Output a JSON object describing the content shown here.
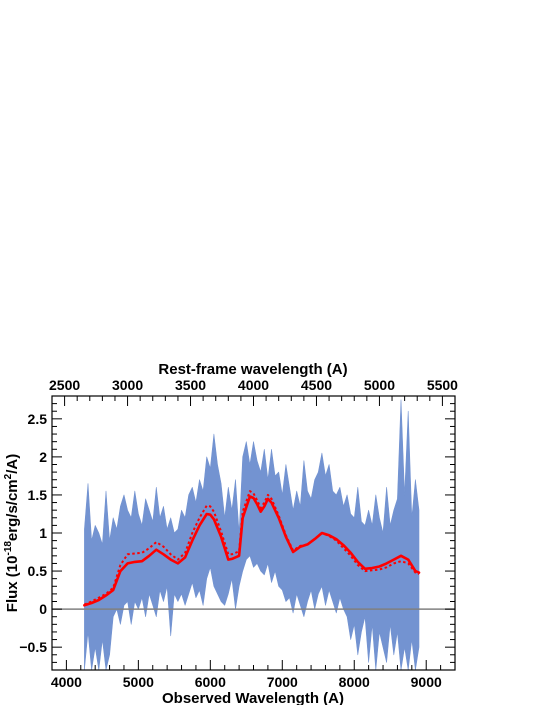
{
  "chart_data": {
    "type": "line",
    "xlabel": "Observed Wavelength (A)",
    "x2label": "Rest-frame wavelength (A)",
    "ylabel_main": "Flux (10",
    "ylabel_exp": "-18",
    "ylabel_mid": "erg/s/cm",
    "ylabel_exp2": "2",
    "ylabel_end": "/A)",
    "xlim": [
      3800,
      9400
    ],
    "ylim": [
      -0.8,
      2.8
    ],
    "x2lim": [
      2400,
      5600
    ],
    "x_ticks": [
      4000,
      5000,
      6000,
      7000,
      8000,
      9000
    ],
    "x_tick_labels": [
      "4000",
      "5000",
      "6000",
      "7000",
      "8000",
      "9000"
    ],
    "x2_ticks": [
      2500,
      3000,
      3500,
      4000,
      4500,
      5000,
      5500
    ],
    "x2_tick_labels": [
      "2500",
      "3000",
      "3500",
      "4000",
      "4500",
      "5000",
      "5500"
    ],
    "y_ticks": [
      -0.5,
      0,
      0.5,
      1,
      1.5,
      2,
      2.5
    ],
    "y_tick_labels": [
      "−0.5",
      "0",
      "0.5",
      "1",
      "1.5",
      "2",
      "2.5"
    ],
    "colors": {
      "spectrum": "#7393d1",
      "model": "#ff0000",
      "zero_line": "#808080",
      "axes": "#000000"
    },
    "series": [
      {
        "style": "solid",
        "x": [
          4250,
          4350,
          4450,
          4550,
          4650,
          4750,
          4850,
          4950,
          5050,
          5150,
          5250,
          5350,
          5450,
          5550,
          5650,
          5750,
          5850,
          5950,
          6000,
          6050,
          6150,
          6250,
          6300,
          6400,
          6450,
          6550,
          6600,
          6650,
          6700,
          6750,
          6800,
          6850,
          6950,
          7050,
          7150,
          7250,
          7350,
          7450,
          7550,
          7650,
          7750,
          7850,
          7950,
          8050,
          8150,
          8250,
          8350,
          8450,
          8550,
          8650,
          8750,
          8850,
          8900
        ],
        "y": [
          0.05,
          0.08,
          0.12,
          0.18,
          0.25,
          0.5,
          0.6,
          0.62,
          0.63,
          0.7,
          0.78,
          0.72,
          0.65,
          0.6,
          0.68,
          0.9,
          1.1,
          1.25,
          1.24,
          1.18,
          0.95,
          0.65,
          0.66,
          0.7,
          1.2,
          1.48,
          1.46,
          1.38,
          1.28,
          1.35,
          1.45,
          1.4,
          1.2,
          0.95,
          0.75,
          0.82,
          0.85,
          0.92,
          1.0,
          0.97,
          0.92,
          0.84,
          0.74,
          0.62,
          0.53,
          0.54,
          0.56,
          0.6,
          0.65,
          0.7,
          0.65,
          0.5,
          0.48
        ]
      },
      {
        "style": "dotted",
        "x": [
          4250,
          4350,
          4450,
          4550,
          4650,
          4750,
          4850,
          4950,
          5050,
          5150,
          5250,
          5350,
          5450,
          5550,
          5650,
          5750,
          5850,
          5950,
          6000,
          6050,
          6150,
          6250,
          6300,
          6400,
          6450,
          6550,
          6600,
          6650,
          6700,
          6750,
          6800,
          6850,
          6950,
          7050,
          7150,
          7250,
          7350,
          7450,
          7550,
          7650,
          7750,
          7850,
          7950,
          8050,
          8150,
          8250,
          8350,
          8450,
          8550,
          8650,
          8750,
          8850,
          8900
        ],
        "y": [
          0.06,
          0.1,
          0.15,
          0.2,
          0.28,
          0.58,
          0.72,
          0.73,
          0.74,
          0.8,
          0.88,
          0.82,
          0.72,
          0.65,
          0.74,
          1.0,
          1.2,
          1.36,
          1.35,
          1.28,
          1.02,
          0.72,
          0.72,
          0.76,
          1.28,
          1.55,
          1.52,
          1.43,
          1.33,
          1.4,
          1.5,
          1.45,
          1.23,
          0.97,
          0.77,
          0.83,
          0.85,
          0.92,
          1.0,
          0.96,
          0.9,
          0.8,
          0.7,
          0.58,
          0.5,
          0.51,
          0.52,
          0.55,
          0.6,
          0.63,
          0.6,
          0.48,
          0.46
        ]
      }
    ],
    "band": {
      "x": [
        4250,
        4300,
        4350,
        4400,
        4450,
        4500,
        4550,
        4600,
        4650,
        4700,
        4750,
        4800,
        4850,
        4900,
        4950,
        5000,
        5050,
        5100,
        5150,
        5200,
        5250,
        5300,
        5350,
        5400,
        5450,
        5500,
        5550,
        5600,
        5650,
        5700,
        5750,
        5800,
        5850,
        5900,
        5950,
        6000,
        6050,
        6100,
        6150,
        6200,
        6250,
        6300,
        6350,
        6400,
        6450,
        6500,
        6550,
        6600,
        6650,
        6700,
        6750,
        6800,
        6850,
        6900,
        6950,
        7000,
        7050,
        7100,
        7150,
        7200,
        7250,
        7300,
        7350,
        7400,
        7450,
        7500,
        7550,
        7600,
        7650,
        7700,
        7750,
        7800,
        7850,
        7900,
        7950,
        8000,
        8050,
        8100,
        8150,
        8200,
        8250,
        8300,
        8350,
        8400,
        8450,
        8500,
        8550,
        8600,
        8650,
        8700,
        8750,
        8800,
        8850,
        8900
      ],
      "upper": [
        1.05,
        1.65,
        0.9,
        1.1,
        1.0,
        0.85,
        1.55,
        0.9,
        1.2,
        1.05,
        1.35,
        1.5,
        1.3,
        1.2,
        1.55,
        1.25,
        1.1,
        1.45,
        1.3,
        1.15,
        1.6,
        1.2,
        1.35,
        1.05,
        1.2,
        1.0,
        1.05,
        1.3,
        1.2,
        1.5,
        1.6,
        1.4,
        1.7,
        1.55,
        2.0,
        1.85,
        2.3,
        1.9,
        1.65,
        1.2,
        1.6,
        1.3,
        1.7,
        1.0,
        2.0,
        2.2,
        1.9,
        2.2,
        1.95,
        1.8,
        2.1,
        1.7,
        2.1,
        1.75,
        1.8,
        1.5,
        1.9,
        1.6,
        1.3,
        1.55,
        1.35,
        1.95,
        1.55,
        1.45,
        1.7,
        1.8,
        2.05,
        1.75,
        1.9,
        1.55,
        1.5,
        1.6,
        1.35,
        1.5,
        1.25,
        1.2,
        1.6,
        1.15,
        1.1,
        1.3,
        1.1,
        1.5,
        1.2,
        1.0,
        1.6,
        1.1,
        1.3,
        1.45,
        2.75,
        1.5,
        2.6,
        1.2,
        1.7,
        1.3
      ],
      "lower": [
        -0.8,
        -0.3,
        -0.8,
        -0.5,
        -0.8,
        -0.4,
        -0.8,
        -0.6,
        -0.1,
        0.0,
        -0.2,
        0.05,
        0.1,
        -0.2,
        0.1,
        0.0,
        0.15,
        -0.1,
        0.2,
        0.05,
        -0.1,
        0.25,
        0.1,
        0.3,
        -0.35,
        0.2,
        0.1,
        0.2,
        0.05,
        0.2,
        0.35,
        0.15,
        0.25,
        0.05,
        0.4,
        0.55,
        0.3,
        0.2,
        0.1,
        0.05,
        0.2,
        0.4,
        0.0,
        0.3,
        0.5,
        0.65,
        0.7,
        0.55,
        0.6,
        0.5,
        0.45,
        0.6,
        0.35,
        0.5,
        0.3,
        0.25,
        0.1,
        0.15,
        -0.05,
        0.2,
        0.05,
        -0.1,
        0.1,
        0.25,
        0.0,
        0.2,
        0.3,
        0.05,
        0.25,
        0.1,
        -0.05,
        0.15,
        0.0,
        -0.1,
        -0.4,
        -0.2,
        -0.6,
        -0.3,
        -0.1,
        -0.7,
        -0.2,
        -0.8,
        -0.3,
        -0.5,
        -0.7,
        -0.2,
        -0.6,
        -0.3,
        -0.8,
        -0.5,
        -0.8,
        -0.4,
        -0.8,
        -0.5
      ]
    }
  }
}
